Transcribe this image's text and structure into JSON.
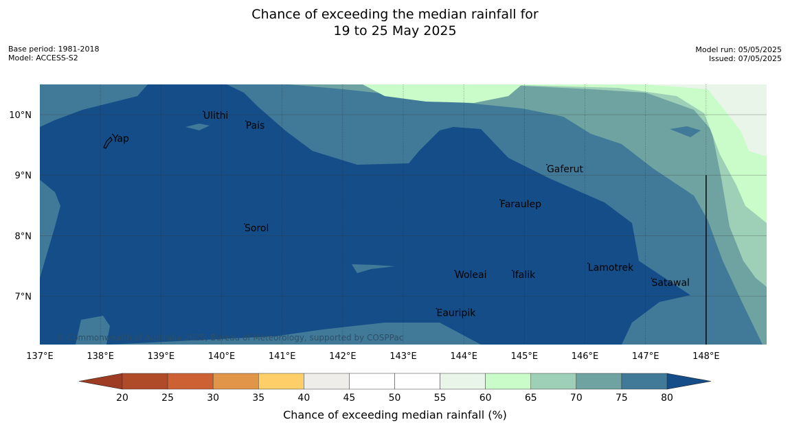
{
  "title": {
    "line1": "Chance of exceeding the median rainfall for",
    "line2": "19 to 25 May 2025"
  },
  "info_left": {
    "base_period": "Base period: 1981-2018",
    "model": "Model: ACCESS-S2"
  },
  "info_right": {
    "model_run": "Model run: 05/05/2025",
    "issued": "Issued: 07/05/2025"
  },
  "map": {
    "lon_range": [
      137,
      149
    ],
    "lat_range": [
      6.2,
      10.5
    ],
    "lat_ticks": [
      {
        "value": 10,
        "label": "10°N"
      },
      {
        "value": 9,
        "label": "9°N"
      },
      {
        "value": 8,
        "label": "8°N"
      },
      {
        "value": 7,
        "label": "7°N"
      }
    ],
    "lon_ticks": [
      {
        "value": 137,
        "label": "137°E"
      },
      {
        "value": 138,
        "label": "138°E"
      },
      {
        "value": 139,
        "label": "139°E"
      },
      {
        "value": 140,
        "label": "140°E"
      },
      {
        "value": 141,
        "label": "141°E"
      },
      {
        "value": 142,
        "label": "142°E"
      },
      {
        "value": 143,
        "label": "143°E"
      },
      {
        "value": 144,
        "label": "144°E"
      },
      {
        "value": 145,
        "label": "145°E"
      },
      {
        "value": 146,
        "label": "146°E"
      },
      {
        "value": 147,
        "label": "147°E"
      },
      {
        "value": 148,
        "label": "148°E"
      }
    ],
    "places": [
      {
        "name": "Yap",
        "lon": 138.2,
        "lat": 9.55
      },
      {
        "name": "Ulithi",
        "lon": 139.7,
        "lat": 9.93
      },
      {
        "name": "Pais",
        "lon": 140.4,
        "lat": 9.77
      },
      {
        "name": "Gaferut",
        "lon": 145.37,
        "lat": 9.05
      },
      {
        "name": "Faraulep",
        "lon": 144.6,
        "lat": 8.47
      },
      {
        "name": "Sorol",
        "lon": 140.38,
        "lat": 8.07
      },
      {
        "name": "Lamotrek",
        "lon": 146.05,
        "lat": 7.42
      },
      {
        "name": "Woleai",
        "lon": 143.85,
        "lat": 7.3
      },
      {
        "name": "Ifalik",
        "lon": 144.8,
        "lat": 7.3
      },
      {
        "name": "Satawal",
        "lon": 147.1,
        "lat": 7.17
      },
      {
        "name": "Eauripik",
        "lon": 143.55,
        "lat": 6.67
      }
    ],
    "copyright": "© Commonwealth of Australia 2025, Bureau of Meteorology, supported by COSPPac",
    "colors": {
      "c_55_60": "#e9f5e9",
      "c_60_65": "#c9fcc8",
      "c_65_70": "#9ecfb7",
      "c_70_75": "#6ea3a1",
      "c_75_80": "#417a99",
      "c_80_plus": "#144d88"
    }
  },
  "colorbar": {
    "title": "Chance of exceeding median rainfall (%)",
    "under_color": "#9d3c22",
    "over_color": "#144d88",
    "segments": [
      {
        "from": 20,
        "to": 25,
        "color": "#b04b2a"
      },
      {
        "from": 25,
        "to": 30,
        "color": "#cd6133"
      },
      {
        "from": 30,
        "to": 35,
        "color": "#e09549"
      },
      {
        "from": 35,
        "to": 40,
        "color": "#fecf68"
      },
      {
        "from": 40,
        "to": 45,
        "color": "#efede9"
      },
      {
        "from": 45,
        "to": 50,
        "color": "#ffffff"
      },
      {
        "from": 50,
        "to": 55,
        "color": "#ffffff"
      },
      {
        "from": 55,
        "to": 60,
        "color": "#e9f5e9"
      },
      {
        "from": 60,
        "to": 65,
        "color": "#c9fcc8"
      },
      {
        "from": 65,
        "to": 70,
        "color": "#9ecfb7"
      },
      {
        "from": 70,
        "to": 75,
        "color": "#6ea3a1"
      },
      {
        "from": 75,
        "to": 80,
        "color": "#417a99"
      }
    ],
    "tick_labels": [
      "20",
      "25",
      "30",
      "35",
      "40",
      "45",
      "50",
      "55",
      "60",
      "65",
      "70",
      "75",
      "80"
    ]
  }
}
